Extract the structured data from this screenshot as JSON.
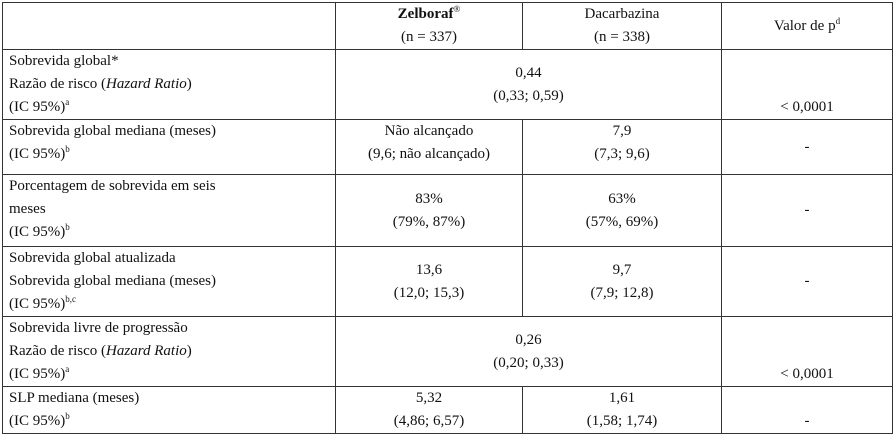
{
  "header": {
    "col2_name": "Zelboraf",
    "col2_mark": "®",
    "col2_n": "(n = 337)",
    "col3_name": "Dacarbazina",
    "col3_n": "(n = 338)",
    "col4_label": "Valor de p",
    "col4_sup": "d"
  },
  "rows": [
    {
      "label_lines": [
        "Sobrevida global*",
        "Razão de risco (",
        "Hazard Ratio",
        ")",
        "(IC 95%)",
        "a"
      ],
      "merged": [
        "0,44",
        "(0,33; 0,59)"
      ],
      "p": "< 0,0001"
    },
    {
      "label_lines": [
        "Sobrevida global mediana (meses)",
        "(IC 95%)",
        "b"
      ],
      "zelboraf": [
        "Não alcançado",
        "(9,6; não alcançado)"
      ],
      "dacarbazina": [
        "7,9",
        "(7,3; 9,6)"
      ],
      "p": "-"
    },
    {
      "label_lines": [
        "Porcentagem de sobrevida em seis",
        "meses",
        "(IC 95%)",
        "b"
      ],
      "zelboraf": [
        "83%",
        "(79%, 87%)"
      ],
      "dacarbazina": [
        "63%",
        "(57%, 69%)"
      ],
      "p": "-"
    },
    {
      "label_lines": [
        "Sobrevida global atualizada",
        "Sobrevida global mediana (meses)",
        "(IC 95%)",
        "b,c"
      ],
      "zelboraf": [
        "13,6",
        "(12,0; 15,3)"
      ],
      "dacarbazina": [
        "9,7",
        "(7,9; 12,8)"
      ],
      "p": "-"
    },
    {
      "label_lines": [
        "Sobrevida livre de progressão",
        "Razão de risco (",
        "Hazard Ratio",
        ")",
        "(IC 95%)",
        "a"
      ],
      "merged": [
        "0,26",
        "(0,20; 0,33)"
      ],
      "p": "< 0,0001"
    },
    {
      "label_lines": [
        "SLP mediana (meses)",
        "(IC 95%)",
        "b"
      ],
      "zelboraf": [
        "5,32",
        "(4,86; 6,57)"
      ],
      "dacarbazina": [
        "1,61",
        "(1,58; 1,74)"
      ],
      "p": "-"
    }
  ]
}
